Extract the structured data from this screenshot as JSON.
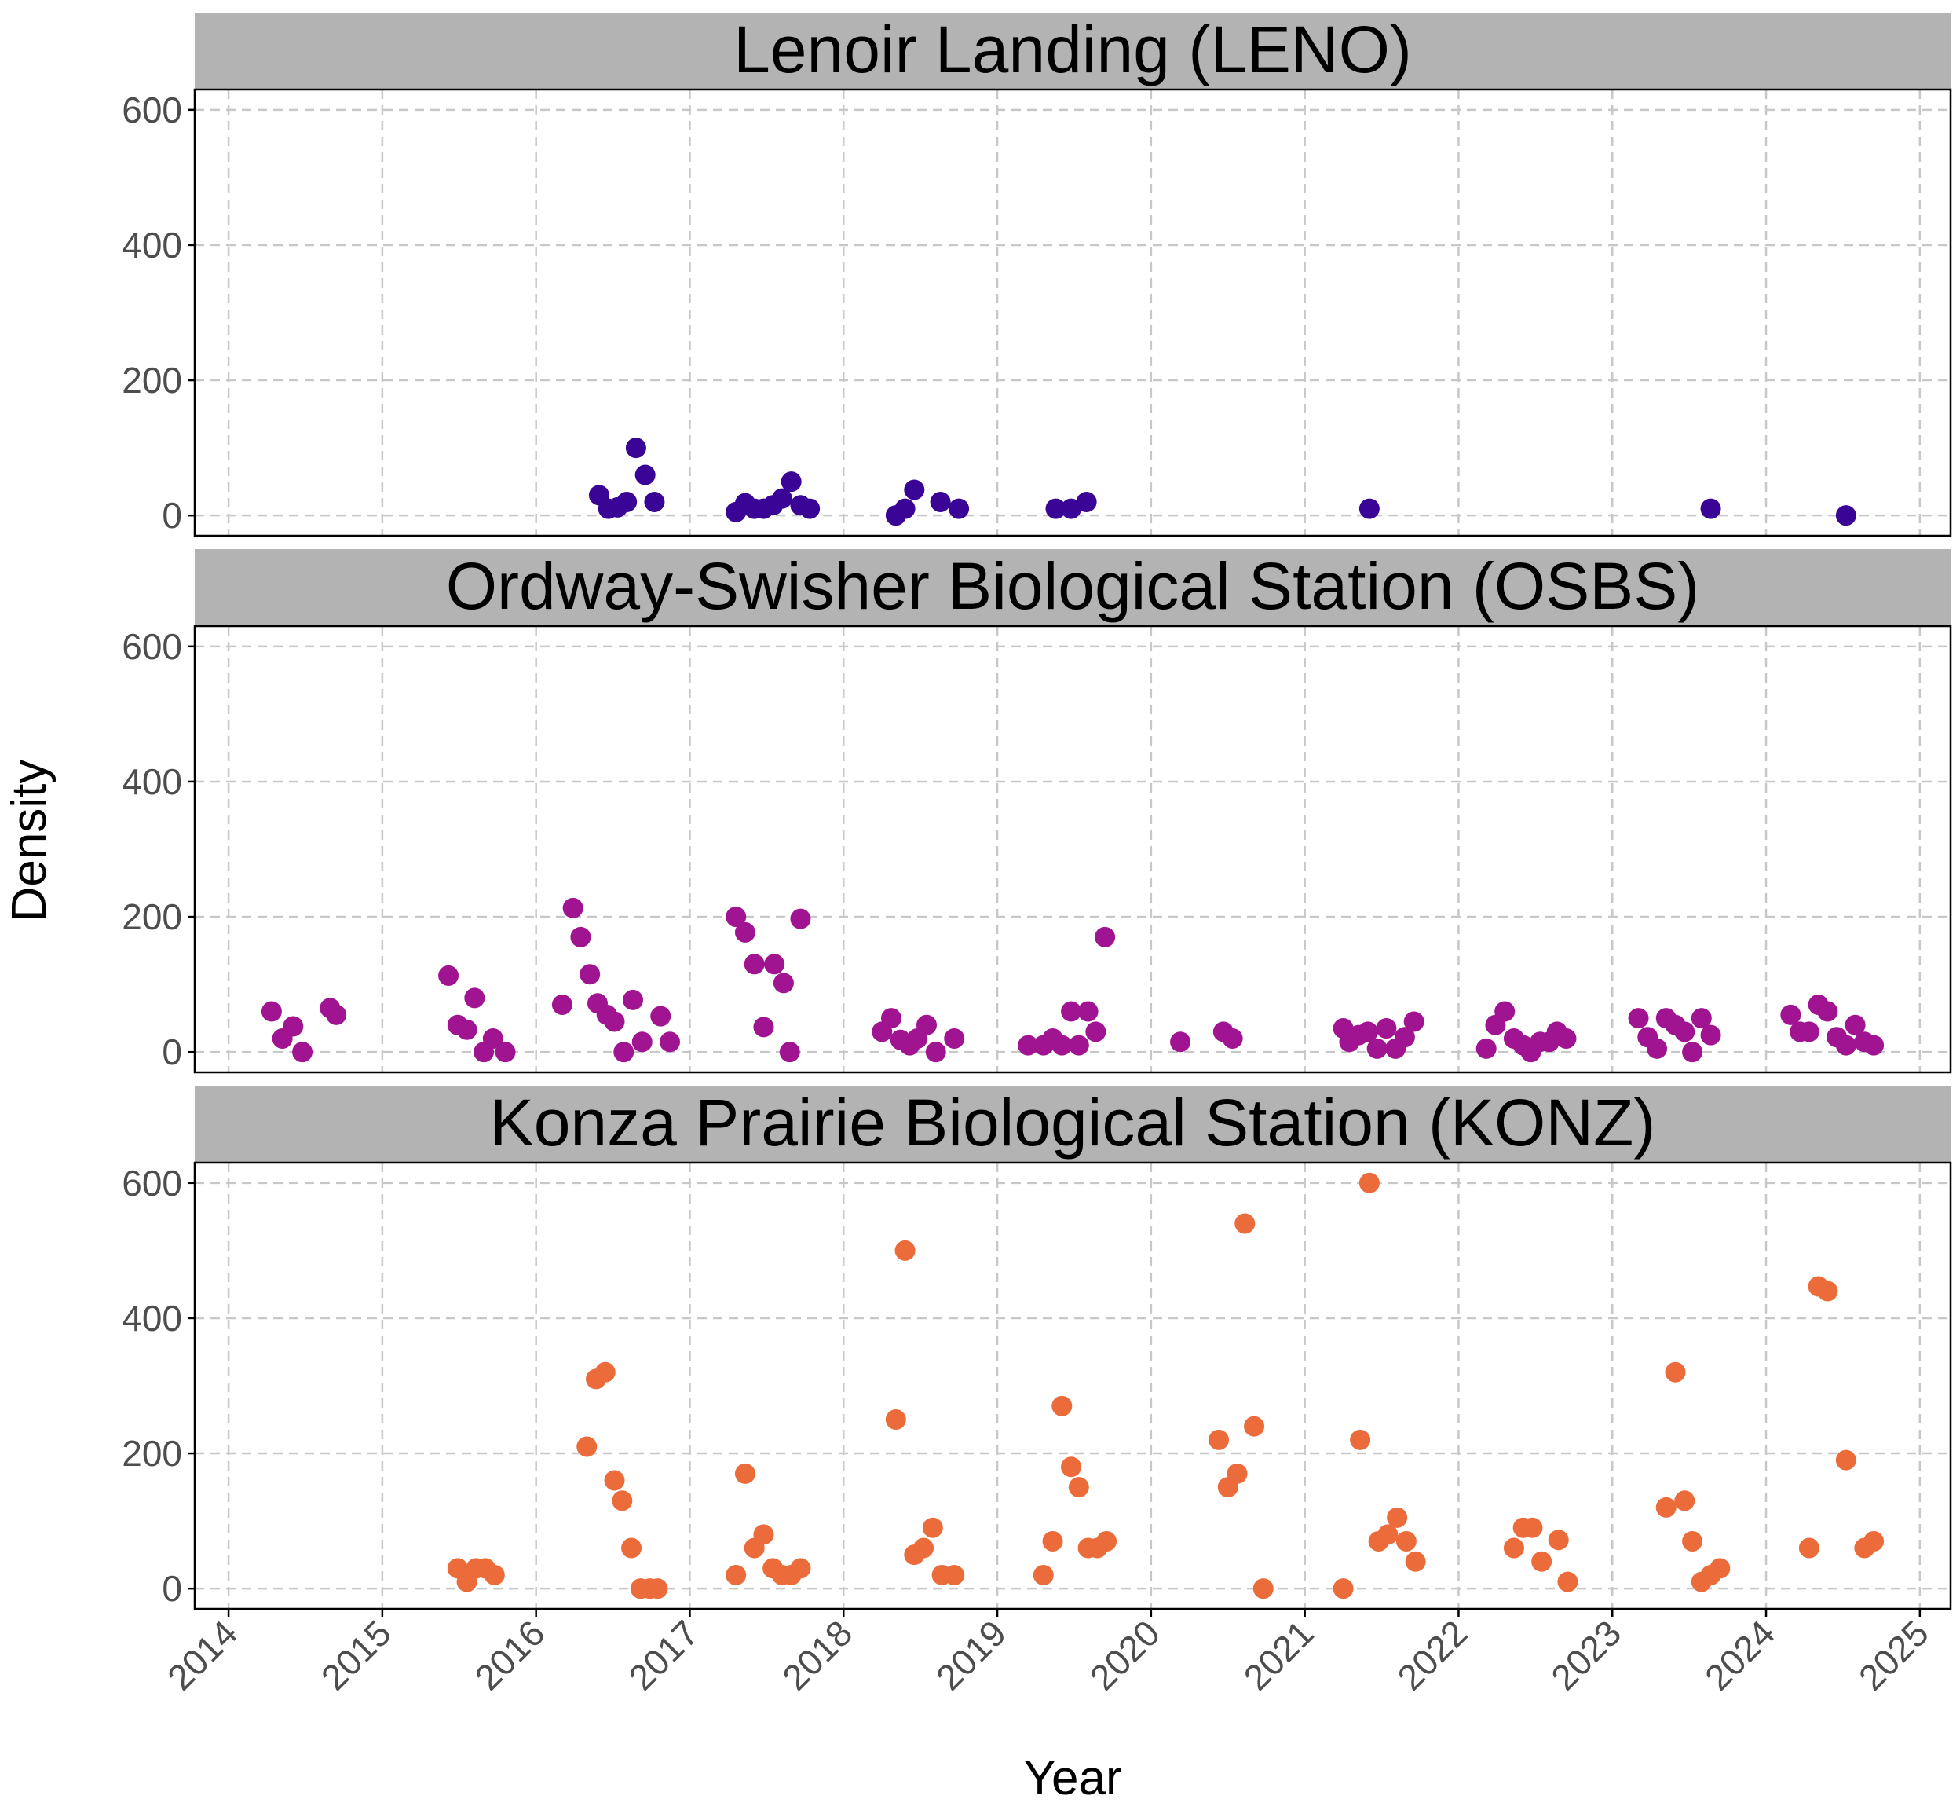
{
  "colors": {
    "strip_background": "#b3b3b3",
    "grid": "#c8c8c8",
    "axis": "#000000",
    "tick_text": "#4d4d4d"
  },
  "chart_data": {
    "type": "scatter",
    "xlabel": "Year",
    "ylabel": "Density",
    "x_ticks": [
      "2014",
      "2015",
      "2016",
      "2017",
      "2018",
      "2019",
      "2020",
      "2021",
      "2022",
      "2023",
      "2024",
      "2025"
    ],
    "y_ticks": [
      "0",
      "200",
      "400",
      "600"
    ],
    "xlim": [
      2013.78,
      2025.2
    ],
    "ylim": [
      -30,
      630
    ],
    "grid": "dashed",
    "panels": [
      {
        "title": "Lenoir Landing (LENO)",
        "color": "#3a0596",
        "points": [
          [
            2016.41,
            30
          ],
          [
            2016.47,
            10
          ],
          [
            2016.53,
            12
          ],
          [
            2016.59,
            20
          ],
          [
            2016.65,
            100
          ],
          [
            2016.71,
            60
          ],
          [
            2016.77,
            20
          ],
          [
            2017.3,
            5
          ],
          [
            2017.36,
            18
          ],
          [
            2017.42,
            10
          ],
          [
            2017.48,
            10
          ],
          [
            2017.54,
            15
          ],
          [
            2017.6,
            25
          ],
          [
            2017.66,
            50
          ],
          [
            2017.72,
            15
          ],
          [
            2017.78,
            10
          ],
          [
            2018.34,
            0
          ],
          [
            2018.4,
            10
          ],
          [
            2018.46,
            38
          ],
          [
            2018.63,
            20
          ],
          [
            2018.75,
            10
          ],
          [
            2019.38,
            10
          ],
          [
            2019.48,
            10
          ],
          [
            2019.58,
            20
          ],
          [
            2021.42,
            10
          ],
          [
            2023.64,
            10
          ],
          [
            2024.52,
            0
          ]
        ]
      },
      {
        "title": "Ordway-Swisher Biological Station (OSBS)",
        "color": "#a01391",
        "points": [
          [
            2014.28,
            60
          ],
          [
            2014.35,
            20
          ],
          [
            2014.42,
            38
          ],
          [
            2014.48,
            0
          ],
          [
            2014.66,
            65
          ],
          [
            2014.7,
            55
          ],
          [
            2015.43,
            113
          ],
          [
            2015.49,
            40
          ],
          [
            2015.55,
            33
          ],
          [
            2015.6,
            80
          ],
          [
            2015.66,
            0
          ],
          [
            2015.72,
            20
          ],
          [
            2015.8,
            0
          ],
          [
            2016.17,
            70
          ],
          [
            2016.24,
            213
          ],
          [
            2016.29,
            170
          ],
          [
            2016.35,
            115
          ],
          [
            2016.4,
            72
          ],
          [
            2016.46,
            55
          ],
          [
            2016.51,
            45
          ],
          [
            2016.57,
            0
          ],
          [
            2016.63,
            77
          ],
          [
            2016.69,
            15
          ],
          [
            2016.81,
            53
          ],
          [
            2016.87,
            15
          ],
          [
            2017.3,
            200
          ],
          [
            2017.36,
            177
          ],
          [
            2017.42,
            130
          ],
          [
            2017.48,
            37
          ],
          [
            2017.55,
            130
          ],
          [
            2017.61,
            102
          ],
          [
            2017.65,
            0
          ],
          [
            2017.72,
            197
          ],
          [
            2018.25,
            30
          ],
          [
            2018.31,
            50
          ],
          [
            2018.37,
            18
          ],
          [
            2018.43,
            10
          ],
          [
            2018.48,
            20
          ],
          [
            2018.54,
            40
          ],
          [
            2018.6,
            0
          ],
          [
            2018.72,
            20
          ],
          [
            2019.2,
            10
          ],
          [
            2019.3,
            10
          ],
          [
            2019.36,
            20
          ],
          [
            2019.42,
            10
          ],
          [
            2019.48,
            60
          ],
          [
            2019.53,
            10
          ],
          [
            2019.59,
            60
          ],
          [
            2019.64,
            30
          ],
          [
            2019.7,
            170
          ],
          [
            2020.19,
            15
          ],
          [
            2020.47,
            30
          ],
          [
            2020.53,
            20
          ],
          [
            2021.25,
            35
          ],
          [
            2021.29,
            15
          ],
          [
            2021.35,
            25
          ],
          [
            2021.41,
            30
          ],
          [
            2021.47,
            5
          ],
          [
            2021.53,
            35
          ],
          [
            2021.59,
            5
          ],
          [
            2021.65,
            22
          ],
          [
            2021.71,
            45
          ],
          [
            2022.18,
            5
          ],
          [
            2022.24,
            40
          ],
          [
            2022.3,
            60
          ],
          [
            2022.36,
            20
          ],
          [
            2022.42,
            10
          ],
          [
            2022.47,
            0
          ],
          [
            2022.53,
            15
          ],
          [
            2022.59,
            15
          ],
          [
            2022.64,
            30
          ],
          [
            2022.7,
            20
          ],
          [
            2023.17,
            50
          ],
          [
            2023.23,
            22
          ],
          [
            2023.29,
            5
          ],
          [
            2023.35,
            50
          ],
          [
            2023.41,
            40
          ],
          [
            2023.47,
            30
          ],
          [
            2023.52,
            0
          ],
          [
            2023.58,
            50
          ],
          [
            2023.64,
            25
          ],
          [
            2024.16,
            55
          ],
          [
            2024.22,
            30
          ],
          [
            2024.28,
            30
          ],
          [
            2024.34,
            70
          ],
          [
            2024.4,
            60
          ],
          [
            2024.46,
            22
          ],
          [
            2024.52,
            10
          ],
          [
            2024.58,
            40
          ],
          [
            2024.64,
            15
          ],
          [
            2024.7,
            10
          ]
        ]
      },
      {
        "title": "Konza Prairie Biological Station (KONZ)",
        "color": "#ec6b3a",
        "points": [
          [
            2015.49,
            30
          ],
          [
            2015.55,
            10
          ],
          [
            2015.61,
            30
          ],
          [
            2015.67,
            30
          ],
          [
            2015.73,
            20
          ],
          [
            2016.33,
            210
          ],
          [
            2016.39,
            310
          ],
          [
            2016.45,
            320
          ],
          [
            2016.51,
            160
          ],
          [
            2016.56,
            130
          ],
          [
            2016.62,
            60
          ],
          [
            2016.68,
            0
          ],
          [
            2016.74,
            0
          ],
          [
            2016.79,
            0
          ],
          [
            2017.3,
            20
          ],
          [
            2017.36,
            170
          ],
          [
            2017.42,
            60
          ],
          [
            2017.48,
            80
          ],
          [
            2017.54,
            30
          ],
          [
            2017.6,
            20
          ],
          [
            2017.66,
            20
          ],
          [
            2017.72,
            30
          ],
          [
            2018.34,
            250
          ],
          [
            2018.4,
            500
          ],
          [
            2018.46,
            50
          ],
          [
            2018.52,
            60
          ],
          [
            2018.58,
            90
          ],
          [
            2018.64,
            20
          ],
          [
            2018.72,
            20
          ],
          [
            2019.3,
            20
          ],
          [
            2019.36,
            70
          ],
          [
            2019.42,
            270
          ],
          [
            2019.48,
            180
          ],
          [
            2019.53,
            150
          ],
          [
            2019.59,
            60
          ],
          [
            2019.65,
            60
          ],
          [
            2019.71,
            70
          ],
          [
            2020.44,
            220
          ],
          [
            2020.5,
            150
          ],
          [
            2020.56,
            170
          ],
          [
            2020.61,
            540
          ],
          [
            2020.67,
            240
          ],
          [
            2020.73,
            0
          ],
          [
            2021.25,
            0
          ],
          [
            2021.36,
            220
          ],
          [
            2021.42,
            600
          ],
          [
            2021.48,
            70
          ],
          [
            2021.54,
            80
          ],
          [
            2021.6,
            105
          ],
          [
            2021.66,
            70
          ],
          [
            2021.72,
            40
          ],
          [
            2022.36,
            60
          ],
          [
            2022.42,
            90
          ],
          [
            2022.48,
            90
          ],
          [
            2022.54,
            40
          ],
          [
            2022.65,
            72
          ],
          [
            2022.71,
            10
          ],
          [
            2023.35,
            120
          ],
          [
            2023.41,
            320
          ],
          [
            2023.47,
            130
          ],
          [
            2023.52,
            70
          ],
          [
            2023.58,
            10
          ],
          [
            2023.64,
            20
          ],
          [
            2023.7,
            30
          ],
          [
            2024.28,
            60
          ],
          [
            2024.34,
            447
          ],
          [
            2024.4,
            440
          ],
          [
            2024.52,
            190
          ],
          [
            2024.64,
            60
          ],
          [
            2024.7,
            70
          ]
        ]
      }
    ]
  }
}
